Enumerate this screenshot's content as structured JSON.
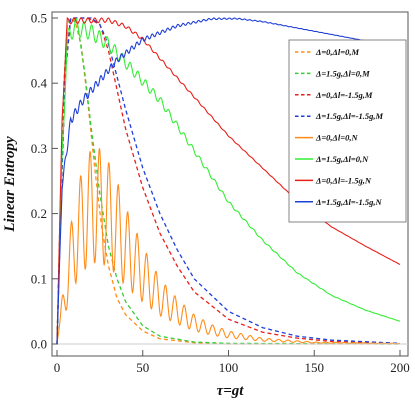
{
  "chart_data": {
    "type": "line",
    "xlabel": "τ=gt",
    "ylabel": "Linear Entropy",
    "xlim": [
      0,
      200
    ],
    "ylim": [
      0,
      0.5
    ],
    "x_ticks": [
      0,
      50,
      100,
      150,
      200
    ],
    "y_ticks": [
      "0.0",
      "0.1",
      "0.2",
      "0.3",
      "0.4",
      "0.5"
    ],
    "grid": false,
    "legend_position": "top-right",
    "series": [
      {
        "name": "Δ=0,Δl=0,M",
        "color": "#ff8c1a",
        "dash": true,
        "points": [
          [
            0,
            0
          ],
          [
            2,
            0.18
          ],
          [
            4,
            0.36
          ],
          [
            6,
            0.46
          ],
          [
            8,
            0.5
          ],
          [
            10,
            0.5
          ],
          [
            14,
            0.46
          ],
          [
            18,
            0.37
          ],
          [
            22,
            0.27
          ],
          [
            26,
            0.18
          ],
          [
            30,
            0.12
          ],
          [
            35,
            0.07
          ],
          [
            40,
            0.045
          ],
          [
            50,
            0.02
          ],
          [
            60,
            0.008
          ],
          [
            80,
            0.002
          ],
          [
            100,
            0
          ],
          [
            200,
            0
          ]
        ]
      },
      {
        "name": "Δ=1.5g,Δl=0,M",
        "color": "#33cc33",
        "dash": true,
        "points": [
          [
            0,
            0
          ],
          [
            2,
            0.22
          ],
          [
            4,
            0.4
          ],
          [
            6,
            0.49
          ],
          [
            8,
            0.5
          ],
          [
            12,
            0.49
          ],
          [
            16,
            0.42
          ],
          [
            20,
            0.33
          ],
          [
            25,
            0.23
          ],
          [
            30,
            0.15
          ],
          [
            35,
            0.1
          ],
          [
            40,
            0.065
          ],
          [
            50,
            0.028
          ],
          [
            60,
            0.012
          ],
          [
            80,
            0.003
          ],
          [
            100,
            0.001
          ],
          [
            200,
            0
          ]
        ]
      },
      {
        "name": "Δ=0,Δl=-1.5g,M",
        "color": "#e8201a",
        "dash": true,
        "points": [
          [
            0,
            0
          ],
          [
            2,
            0.2
          ],
          [
            5,
            0.42
          ],
          [
            8,
            0.5
          ],
          [
            18,
            0.5
          ],
          [
            25,
            0.49
          ],
          [
            30,
            0.45
          ],
          [
            35,
            0.39
          ],
          [
            40,
            0.33
          ],
          [
            50,
            0.24
          ],
          [
            60,
            0.17
          ],
          [
            70,
            0.12
          ],
          [
            80,
            0.08
          ],
          [
            100,
            0.038
          ],
          [
            120,
            0.018
          ],
          [
            140,
            0.009
          ],
          [
            160,
            0.004
          ],
          [
            200,
            0.001
          ]
        ]
      },
      {
        "name": "Δ=1.5g,Δl=-1.5g,M",
        "color": "#1f3fd6",
        "dash": true,
        "points": [
          [
            0,
            0
          ],
          [
            2,
            0.2
          ],
          [
            5,
            0.42
          ],
          [
            8,
            0.5
          ],
          [
            20,
            0.5
          ],
          [
            25,
            0.49
          ],
          [
            30,
            0.46
          ],
          [
            35,
            0.41
          ],
          [
            40,
            0.36
          ],
          [
            50,
            0.27
          ],
          [
            60,
            0.2
          ],
          [
            70,
            0.145
          ],
          [
            80,
            0.1
          ],
          [
            100,
            0.05
          ],
          [
            120,
            0.025
          ],
          [
            140,
            0.012
          ],
          [
            160,
            0.006
          ],
          [
            200,
            0.001
          ]
        ]
      },
      {
        "name": "Δ=0,Δl=0,N",
        "color": "#ff8c1a",
        "dash": false,
        "points": [
          [
            0,
            0
          ],
          [
            5,
            0.12
          ],
          [
            10,
            0.22
          ],
          [
            15,
            0.27
          ],
          [
            20,
            0.3
          ],
          [
            25,
            0.3
          ],
          [
            30,
            0.28
          ],
          [
            35,
            0.25
          ],
          [
            40,
            0.21
          ],
          [
            50,
            0.15
          ],
          [
            60,
            0.1
          ],
          [
            70,
            0.07
          ],
          [
            80,
            0.045
          ],
          [
            90,
            0.03
          ],
          [
            100,
            0.02
          ],
          [
            120,
            0.009
          ],
          [
            150,
            0.003
          ],
          [
            200,
            0.001
          ]
        ],
        "osc": 0.6,
        "period": 5.5,
        "osc_decay": 1000
      },
      {
        "name": "Δ=1.5g,Δl=0,N",
        "color": "#33ee33",
        "dash": false,
        "points": [
          [
            0,
            0
          ],
          [
            3,
            0.3
          ],
          [
            6,
            0.48
          ],
          [
            10,
            0.5
          ],
          [
            20,
            0.49
          ],
          [
            30,
            0.47
          ],
          [
            40,
            0.44
          ],
          [
            50,
            0.41
          ],
          [
            60,
            0.38
          ],
          [
            70,
            0.34
          ],
          [
            80,
            0.3
          ],
          [
            90,
            0.26
          ],
          [
            100,
            0.22
          ],
          [
            120,
            0.16
          ],
          [
            140,
            0.11
          ],
          [
            160,
            0.075
          ],
          [
            180,
            0.052
          ],
          [
            200,
            0.035
          ]
        ],
        "osc": 0.06,
        "period": 4.5,
        "osc_decay": 90
      },
      {
        "name": "Δ=0,Δl=-1.5g,N",
        "color": "#e8201a",
        "dash": false,
        "points": [
          [
            0,
            0
          ],
          [
            3,
            0.35
          ],
          [
            6,
            0.5
          ],
          [
            30,
            0.5
          ],
          [
            40,
            0.49
          ],
          [
            50,
            0.47
          ],
          [
            60,
            0.44
          ],
          [
            70,
            0.41
          ],
          [
            80,
            0.38
          ],
          [
            90,
            0.35
          ],
          [
            100,
            0.32
          ],
          [
            120,
            0.27
          ],
          [
            140,
            0.22
          ],
          [
            160,
            0.18
          ],
          [
            180,
            0.15
          ],
          [
            200,
            0.122
          ]
        ],
        "osc": 0.02,
        "period": 4,
        "osc_decay": 70
      },
      {
        "name": "Δ=1.5g,Δl=-1.5g,N",
        "color": "#1f3fd6",
        "dash": false,
        "points": [
          [
            0,
            0
          ],
          [
            3,
            0.25
          ],
          [
            8,
            0.35
          ],
          [
            15,
            0.38
          ],
          [
            25,
            0.41
          ],
          [
            35,
            0.44
          ],
          [
            50,
            0.47
          ],
          [
            70,
            0.49
          ],
          [
            90,
            0.5
          ],
          [
            105,
            0.5
          ],
          [
            120,
            0.495
          ],
          [
            140,
            0.485
          ],
          [
            160,
            0.475
          ],
          [
            180,
            0.465
          ],
          [
            200,
            0.452
          ]
        ],
        "osc": 0.05,
        "period": 3,
        "osc_decay": 40
      }
    ]
  }
}
